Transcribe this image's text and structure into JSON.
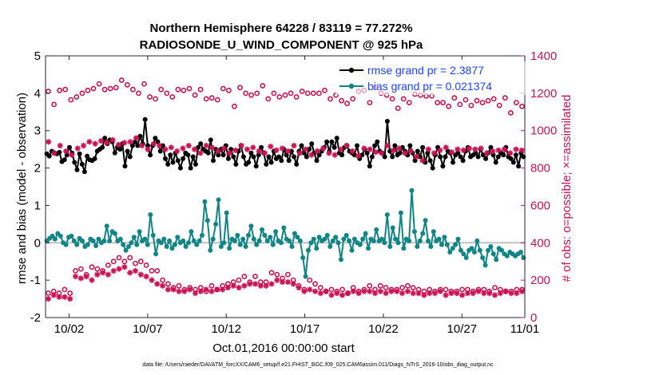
{
  "chart_data": {
    "type": "line",
    "title": "Northern Hemisphere 64228 / 83119 = 77.272%",
    "subtitle": "RADIOSONDE_U_WIND_COMPONENT @ 925 hPa",
    "xlabel": "Oct.01,2016 00:00:00 start",
    "ylabel": "rmse and bias (model - observation)",
    "y2label": "# of obs: o=possible; ×=assimilated",
    "footer": "data file: /Users/raeder/DAI/ATM_forcXX/CAM6_setup/f.e21.FHIST_BGC.f09_025.CAM6assim.011/Diags_NTrS_2016-10/obs_diag_output.nc",
    "xlim": [
      0.5,
      31.0
    ],
    "ylim": [
      -2,
      5
    ],
    "y2lim": [
      0,
      1400
    ],
    "x_ticks": [
      2,
      7,
      12,
      17,
      22,
      27,
      32
    ],
    "x_tick_labels": [
      "10/02",
      "10/07",
      "10/12",
      "10/17",
      "10/22",
      "10/27",
      "11/01"
    ],
    "y_ticks": [
      -2,
      -1,
      0,
      1,
      2,
      3,
      4,
      5
    ],
    "y_tick_labels": [
      "-2",
      "-1",
      "0",
      "1",
      "2",
      "3",
      "4",
      "5"
    ],
    "y2_ticks": [
      0,
      200,
      400,
      600,
      800,
      1000,
      1200,
      1400
    ],
    "y2_tick_labels": [
      "0",
      "200",
      "400",
      "600",
      "800",
      "1000",
      "1200",
      "1400"
    ],
    "series": [
      {
        "name": "rmse grand pr = 2.3877",
        "color": "#000000",
        "axis": "left",
        "values": [
          2.38,
          2.32,
          2.45,
          2.4,
          2.38,
          2.42,
          2.17,
          2.22,
          2.35,
          2.55,
          2.4,
          2.15,
          1.95,
          2.38,
          2.1,
          1.9,
          2.32,
          2.22,
          2.2,
          2.25,
          2.45,
          2.5,
          2.55,
          2.8,
          2.65,
          2.75,
          2.7,
          2.4,
          2.55,
          2.5,
          2.65,
          2.05,
          2.45,
          2.3,
          2.6,
          2.7,
          2.6,
          2.85,
          2.65,
          3.3,
          2.6,
          2.35,
          2.6,
          2.8,
          2.7,
          2.45,
          2.6,
          2.25,
          2.1,
          2.35,
          2.15,
          2.4,
          2.2,
          2.0,
          2.25,
          2.4,
          2.35,
          2.0,
          2.3,
          2.1,
          2.55,
          2.65,
          2.5,
          2.45,
          2.4,
          2.75,
          2.2,
          2.5,
          2.35,
          2.5,
          2.35,
          2.6,
          2.25,
          2.5,
          2.3,
          2.1,
          2.45,
          2.6,
          2.3,
          2.1,
          2.15,
          2.4,
          2.3,
          2.05,
          2.35,
          2.55,
          2.4,
          2.1,
          2.3,
          2.15,
          2.45,
          2.25,
          2.3,
          2.2,
          2.5,
          2.35,
          2.2,
          2.45,
          2.3,
          2.1,
          2.45,
          2.6,
          2.4,
          2.3,
          2.5,
          2.65,
          2.4,
          2.2,
          2.35,
          2.45,
          2.55,
          2.7,
          2.45,
          2.7,
          2.55,
          2.8,
          2.4,
          2.35,
          2.55,
          2.6,
          2.45,
          2.4,
          2.35,
          2.6,
          2.25,
          2.35,
          2.5,
          2.4,
          2.05,
          2.3,
          2.6,
          2.7,
          2.45,
          2.4,
          2.3,
          3.25,
          2.45,
          2.3,
          2.6,
          2.35,
          2.4,
          2.55,
          2.45,
          2.35,
          2.6,
          2.4,
          2.2,
          2.45,
          2.3,
          2.55,
          2.15,
          2.4,
          2.2,
          2.0,
          2.35,
          2.55,
          2.3,
          2.05,
          2.3,
          2.45,
          2.4,
          2.15,
          2.35,
          2.4,
          2.3,
          2.2,
          2.45,
          2.55,
          2.3,
          2.35,
          2.4,
          2.3,
          2.5,
          2.35,
          2.25,
          2.4,
          2.55,
          2.35,
          2.15,
          2.3,
          2.4,
          2.35,
          2.55,
          2.3,
          2.25,
          2.15,
          2.35,
          2.05,
          2.4,
          2.3
        ]
      },
      {
        "name": "bias grand pr = 0.021374",
        "color": "#0f8585",
        "axis": "left",
        "values": [
          0.05,
          0.12,
          0.18,
          0.1,
          0.25,
          0.18,
          0.0,
          -0.05,
          0.15,
          0.18,
          0.05,
          -0.05,
          0.12,
          0.05,
          -0.1,
          -0.05,
          0.1,
          0.05,
          -0.08,
          0.1,
          0.0,
          0.05,
          0.45,
          0.05,
          0.3,
          0.25,
          0.05,
          0.1,
          -0.05,
          -0.2,
          -0.1,
          0.0,
          0.15,
          -0.05,
          0.3,
          0.05,
          0.1,
          -0.05,
          0.75,
          0.2,
          -0.3,
          0.05,
          0.0,
          0.1,
          -0.1,
          0.05,
          -0.15,
          -0.05,
          0.15,
          0.0,
          0.05,
          -0.1,
          0.0,
          0.3,
          0.05,
          -0.05,
          0.05,
          0.2,
          1.1,
          0.6,
          -0.2,
          0.1,
          0.5,
          1.15,
          -0.1,
          0.0,
          0.8,
          -0.15,
          0.1,
          0.05,
          0.2,
          -0.05,
          0.1,
          -0.1,
          0.2,
          0.45,
          0.1,
          -0.05,
          0.05,
          0.35,
          0.2,
          0.05,
          0.15,
          -0.05,
          0.3,
          0.05,
          0.0,
          0.4,
          0.1,
          0.05,
          -0.1,
          0.25,
          0.15,
          0.05,
          -0.4,
          -0.9,
          -0.2,
          0.0,
          0.1,
          -0.15,
          0.15,
          0.05,
          0.1,
          0.2,
          -0.1,
          0.05,
          0.15,
          0.0,
          -0.45,
          0.1,
          0.2,
          0.05,
          -0.2,
          0.1,
          0.0,
          -0.05,
          0.1,
          0.25,
          -0.15,
          0.1,
          0.05,
          0.35,
          0.05,
          0.1,
          0.0,
          0.75,
          -0.1,
          0.4,
          0.1,
          0.0,
          0.8,
          -0.15,
          0.1,
          0.05,
          1.4,
          0.3,
          -0.1,
          0.05,
          0.25,
          0.6,
          0.05,
          -0.1,
          0.3,
          0.05,
          0.1,
          -0.05,
          0.15,
          -0.05,
          -0.25,
          -0.15,
          -0.05,
          0.1,
          -0.2,
          -0.3,
          -0.4,
          -0.2,
          -0.15,
          -0.25,
          0.05,
          -0.2,
          -0.4,
          -0.6,
          -0.2,
          -0.1,
          -0.3,
          -0.45,
          -0.15,
          -0.2,
          -0.3,
          -0.35,
          -0.25,
          -0.3,
          -0.35,
          -0.3,
          -0.25,
          -0.4
        ]
      },
      {
        "name": "obs possible",
        "marker": "circle",
        "color": "#cc1155",
        "axis": "right",
        "values": [
          1210,
          1140,
          1215,
          1220,
          1165,
          1180,
          1200,
          1215,
          1225,
          1250,
          1220,
          1225,
          1230,
          1270,
          1245,
          1220,
          1200,
          1250,
          1180,
          1170,
          1220,
          1200,
          1180,
          1220,
          1215,
          1225,
          1190,
          1220,
          1170,
          1175,
          1165,
          1225,
          1215,
          1130,
          1230,
          1200,
          1190,
          1200,
          1240,
          1170,
          1200,
          1180,
          1190,
          1200,
          1180,
          1210,
          1200,
          1200,
          1200,
          1215,
          1170,
          1190,
          1160,
          1145,
          1170,
          1210,
          1215,
          1150,
          1230,
          1200,
          1190,
          1170,
          1120,
          1170,
          1150,
          1195,
          1190,
          1185,
          1185,
          1150,
          1150,
          1130,
          1175,
          1140,
          1165,
          1135,
          1160,
          1150,
          1160,
          1170,
          1135,
          1175,
          1095,
          1150,
          1130
        ]
      },
      {
        "name": "obs assimilated",
        "marker": "star",
        "color": "#cc1155",
        "axis": "right",
        "values": [
          940,
          880,
          920,
          890,
          870,
          905,
          920,
          940,
          930,
          945,
          935,
          950,
          925,
          935,
          940,
          960,
          920,
          900,
          930,
          920,
          900,
          910,
          890,
          905,
          920,
          900,
          880,
          920,
          910,
          890,
          905,
          880,
          895,
          920,
          900,
          910,
          890,
          880,
          915,
          895,
          905,
          890,
          920,
          880,
          900,
          870,
          890,
          905,
          880,
          870,
          900,
          920,
          890,
          865,
          905,
          900,
          885,
          880,
          920,
          895,
          905,
          880,
          890,
          860,
          840,
          900,
          880,
          895,
          910,
          885,
          900,
          895,
          905,
          900,
          905,
          880,
          890,
          895,
          900,
          880,
          900,
          895
        ]
      },
      {
        "name": "obs possible (lower)",
        "marker": "circle",
        "color": "#cc1155",
        "axis": "right",
        "values": [
          130,
          140,
          130,
          150,
          130,
          250,
          260,
          230,
          270,
          260,
          250,
          280,
          300,
          320,
          300,
          320,
          290,
          300,
          280,
          250,
          250,
          200,
          180,
          160,
          170,
          150,
          160,
          150,
          160,
          140,
          170,
          150,
          170,
          180,
          190,
          200,
          220,
          190,
          220,
          190,
          190,
          240,
          230,
          210,
          230,
          200,
          170,
          150,
          200,
          180,
          160,
          140,
          150,
          140,
          150,
          130,
          160,
          140,
          150,
          170,
          150,
          170,
          160,
          150,
          150,
          160,
          170,
          160,
          150,
          140,
          150,
          140,
          150,
          150,
          140,
          140,
          150,
          150,
          140,
          150,
          150,
          140,
          160,
          150,
          140,
          140,
          150,
          150
        ]
      },
      {
        "name": "obs assimilated (lower)",
        "marker": "star",
        "color": "#cc1155",
        "axis": "right",
        "values": [
          100,
          120,
          110,
          110,
          100,
          220,
          210,
          220,
          200,
          230,
          240,
          230,
          250,
          260,
          270,
          240,
          250,
          230,
          220,
          200,
          180,
          170,
          150,
          150,
          140,
          140,
          150,
          130,
          140,
          150,
          140,
          150,
          150,
          160,
          170,
          160,
          170,
          180,
          180,
          170,
          170,
          180,
          200,
          190,
          190,
          180,
          160,
          140,
          150,
          140,
          130,
          140,
          120,
          130,
          120,
          130,
          140,
          130,
          140,
          140,
          130,
          140,
          130,
          140,
          140,
          130,
          140,
          130,
          130,
          120,
          130,
          130,
          140,
          120,
          130,
          130,
          120,
          130,
          130,
          140,
          130,
          130,
          120,
          130,
          140,
          130,
          130,
          140
        ]
      }
    ],
    "legend": {
      "position": "top-right",
      "entries": [
        "rmse grand pr = 2.3877",
        "bias grand pr = 0.021374"
      ]
    },
    "grid": false
  },
  "colors": {
    "rmse": "#000000",
    "bias": "#0f8585",
    "obs": "#cc1155",
    "zero_line": "#c0c0c0",
    "legend_text": "#1a44ff"
  }
}
